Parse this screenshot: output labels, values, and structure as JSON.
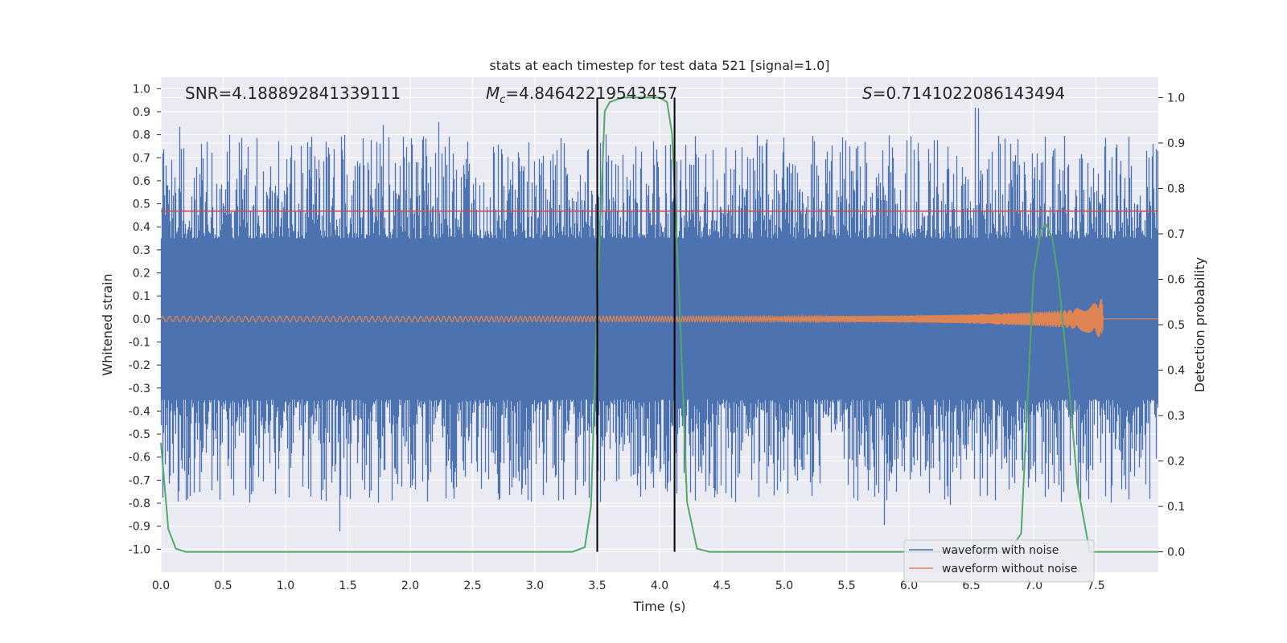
{
  "chart_data": {
    "type": "line",
    "title": "stats at each timestep for test data 521 [signal=1.0]",
    "xlabel": "Time (s)",
    "ylabel": "Whitened strain",
    "y2label": "Detection probability",
    "xlim": [
      0.0,
      8.0
    ],
    "ylim": [
      -1.1,
      1.05
    ],
    "y2lim": [
      -0.045,
      1.045
    ],
    "x_ticks": [
      "0.0",
      "0.5",
      "1.0",
      "1.5",
      "2.0",
      "2.5",
      "3.0",
      "3.5",
      "4.0",
      "4.5",
      "5.0",
      "5.5",
      "6.0",
      "6.5",
      "7.0",
      "7.5"
    ],
    "y_ticks": [
      "1.0",
      "0.9",
      "0.8",
      "0.7",
      "0.6",
      "0.5",
      "0.4",
      "0.3",
      "0.2",
      "0.1",
      "0.0",
      "-0.1",
      "-0.2",
      "-0.3",
      "-0.4",
      "-0.5",
      "-0.6",
      "-0.7",
      "-0.8",
      "-0.9",
      "-1.0"
    ],
    "y2_ticks": [
      "1.0",
      "0.9",
      "0.8",
      "0.7",
      "0.6",
      "0.5",
      "0.4",
      "0.3",
      "0.2",
      "0.1",
      "0.0"
    ],
    "grid": true,
    "legend_position": "lower-right",
    "annotations": {
      "snr": "SNR=4.188892841339111",
      "mc_symbol": "M",
      "mc_sub": "c",
      "mc_value": "=4.84642219543457",
      "s_symbol": "S",
      "s_value": "=0.7141022086143494"
    },
    "threshold": 0.75,
    "vlines": [
      3.5,
      4.12
    ],
    "series": [
      {
        "name": "waveform with noise",
        "color": "#4c72b0",
        "envelope": 0.35,
        "max_peak": 0.95,
        "min_peak": -0.99
      },
      {
        "name": "waveform without noise",
        "color": "#dd8452",
        "x": [
          0.0,
          1.0,
          2.0,
          3.0,
          4.0,
          5.0,
          6.0,
          6.5,
          7.0,
          7.3,
          7.5,
          7.55,
          7.56,
          8.0
        ],
        "amplitude": [
          0.012,
          0.012,
          0.012,
          0.012,
          0.012,
          0.012,
          0.015,
          0.02,
          0.03,
          0.04,
          0.07,
          0.09,
          0.0,
          0.0
        ]
      },
      {
        "name": "detection probability",
        "color": "#55a868",
        "x": [
          0.0,
          0.06,
          0.12,
          0.2,
          0.5,
          1.0,
          2.0,
          3.0,
          3.3,
          3.4,
          3.45,
          3.5,
          3.56,
          3.6,
          3.7,
          3.8,
          3.9,
          4.0,
          4.06,
          4.1,
          4.16,
          4.22,
          4.3,
          4.4,
          5.0,
          6.0,
          6.8,
          6.9,
          7.0,
          7.06,
          7.1,
          7.15,
          7.2,
          7.28,
          7.35,
          7.45,
          8.0
        ],
        "values": [
          0.24,
          0.05,
          0.007,
          0.0,
          0.0,
          0.0,
          0.0,
          0.0,
          0.0,
          0.01,
          0.1,
          0.55,
          0.97,
          0.99,
          1.0,
          1.0,
          1.0,
          1.0,
          0.99,
          0.92,
          0.55,
          0.11,
          0.007,
          0.0,
          0.0,
          0.0,
          0.0,
          0.04,
          0.61,
          0.71,
          0.72,
          0.69,
          0.6,
          0.38,
          0.15,
          0.0,
          0.0
        ]
      }
    ],
    "threshold_color": "#c44e52",
    "vline_color": "#000000"
  }
}
